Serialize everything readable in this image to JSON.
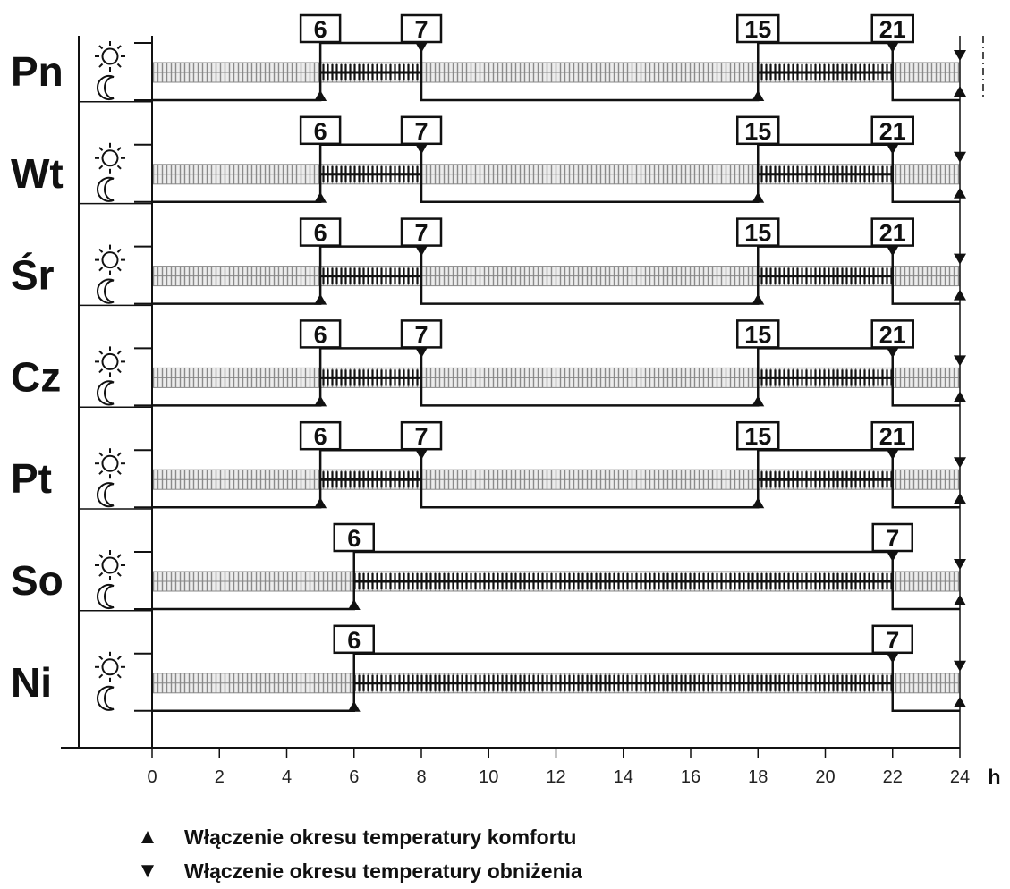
{
  "chart_data": {
    "type": "timeline",
    "x_unit": "h",
    "x_ticks": [
      "0",
      "2",
      "4",
      "6",
      "8",
      "10",
      "12",
      "14",
      "16",
      "18",
      "20",
      "22",
      "24"
    ],
    "xlim": [
      0,
      24
    ],
    "levels": [
      "comfort",
      "reduced"
    ],
    "rows": [
      {
        "day": "Pn",
        "segments": [
          [
            5,
            8
          ],
          [
            18,
            22
          ]
        ],
        "box_labels": [
          "6",
          "7",
          "15",
          "21"
        ]
      },
      {
        "day": "Wt",
        "segments": [
          [
            5,
            8
          ],
          [
            18,
            22
          ]
        ],
        "box_labels": [
          "6",
          "7",
          "15",
          "21"
        ]
      },
      {
        "day": "Śr",
        "segments": [
          [
            5,
            8
          ],
          [
            18,
            22
          ]
        ],
        "box_labels": [
          "6",
          "7",
          "15",
          "21"
        ]
      },
      {
        "day": "Cz",
        "segments": [
          [
            5,
            8
          ],
          [
            18,
            22
          ]
        ],
        "box_labels": [
          "6",
          "7",
          "15",
          "21"
        ]
      },
      {
        "day": "Pt",
        "segments": [
          [
            5,
            8
          ],
          [
            18,
            22
          ]
        ],
        "box_labels": [
          "6",
          "7",
          "15",
          "21"
        ]
      },
      {
        "day": "So",
        "segments": [
          [
            6,
            22
          ]
        ],
        "box_labels": [
          "6",
          "7"
        ]
      },
      {
        "day": "Ni",
        "segments": [
          [
            6,
            22
          ]
        ],
        "box_labels": [
          "6",
          "7"
        ]
      }
    ]
  },
  "legend": {
    "up_symbol": "▲",
    "up_text": "Włączenie okresu temperatury komfortu",
    "down_symbol": "▼",
    "down_text": "Włączenie okresu temperatury obniżenia"
  },
  "icons": {
    "comfort": "sun-icon",
    "reduced": "moon-icon"
  },
  "colors": {
    "line": "#111111",
    "band_fill": "#ececec",
    "hatch_light": "#8a8a8a",
    "hatch_dark": "#111111"
  }
}
